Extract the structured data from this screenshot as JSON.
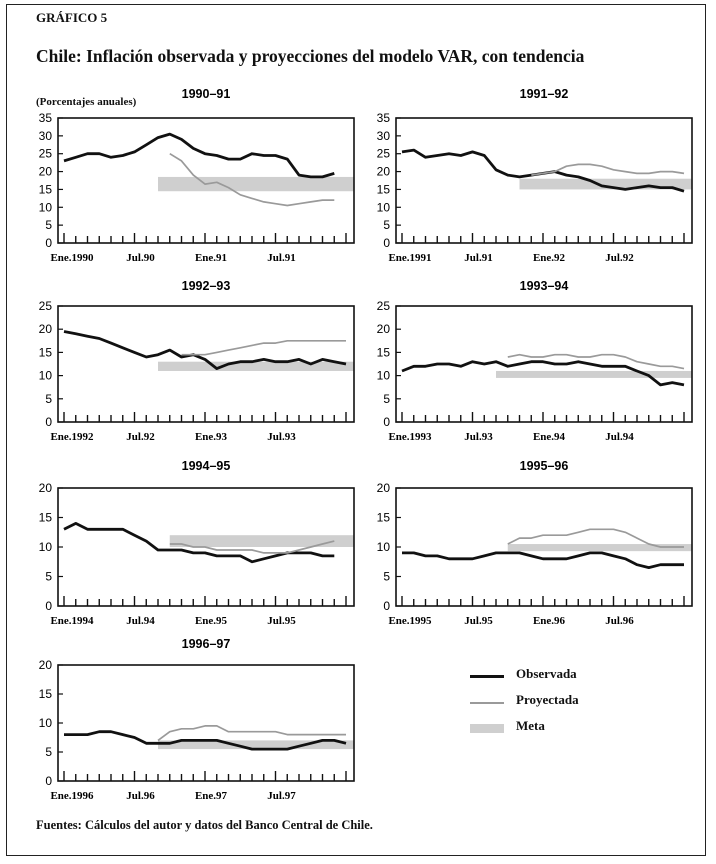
{
  "figure": {
    "label": "GRÁFICO 5",
    "title": "Chile: Inflación observada y proyecciones del modelo VAR, con tendencia",
    "ylabel": "(Porcentajes anuales)",
    "source": "Fuentes: Cálculos del autor y datos del Banco Central de Chile."
  },
  "legend": {
    "observada": "Observada",
    "proyectada": "Proyectada",
    "meta": "Meta"
  },
  "colors": {
    "observada": "#111111",
    "proyectada": "#9a9a9a",
    "meta": "#cfcfcf"
  },
  "chart_data": [
    {
      "type": "line",
      "title": "1990–91",
      "ylim": [
        0,
        35
      ],
      "yticks": [
        0,
        5,
        10,
        15,
        20,
        25,
        30,
        35
      ],
      "xlabels": [
        {
          "label": "Ene.1990",
          "month": 0
        },
        {
          "label": "Jul.90",
          "month": 6
        },
        {
          "label": "Ene.91",
          "month": 12
        },
        {
          "label": "Jul.91",
          "month": 18
        }
      ],
      "meta": [
        14.5,
        18.5
      ],
      "meta_start": 8,
      "series": [
        {
          "name": "Observada",
          "x": [
            0,
            1,
            2,
            3,
            4,
            5,
            6,
            7,
            8,
            9,
            10,
            11,
            12,
            13,
            14,
            15,
            16,
            17,
            18,
            19,
            20,
            21,
            22,
            23
          ],
          "values": [
            23,
            24,
            25,
            25,
            24,
            24.5,
            25.5,
            27.5,
            29.5,
            30.5,
            29,
            26.5,
            25,
            24.5,
            23.5,
            23.5,
            25,
            24.5,
            24.5,
            23.5,
            19,
            18.5,
            18.5,
            19.5
          ]
        },
        {
          "name": "Proyectada",
          "x": [
            9,
            10,
            11,
            12,
            13,
            14,
            15,
            16,
            17,
            18,
            19,
            20,
            21,
            22,
            23
          ],
          "values": [
            25,
            23,
            19,
            16.5,
            17,
            15.5,
            13.5,
            12.5,
            11.5,
            11,
            10.5,
            11,
            11.5,
            12,
            12
          ]
        }
      ]
    },
    {
      "type": "line",
      "title": "1991–92",
      "ylim": [
        0,
        35
      ],
      "yticks": [
        0,
        5,
        10,
        15,
        20,
        25,
        30,
        35
      ],
      "xlabels": [
        {
          "label": "Ene.1991",
          "month": 0
        },
        {
          "label": "Jul.91",
          "month": 6
        },
        {
          "label": "Ene.92",
          "month": 12
        },
        {
          "label": "Jul.92",
          "month": 18
        }
      ],
      "meta": [
        15,
        18
      ],
      "meta_start": 10,
      "series": [
        {
          "name": "Observada",
          "x": [
            0,
            1,
            2,
            3,
            4,
            5,
            6,
            7,
            8,
            9,
            10,
            11,
            12,
            13,
            14,
            15,
            16,
            17,
            18,
            19,
            20,
            21,
            22,
            23,
            24
          ],
          "values": [
            25.5,
            26,
            24,
            24.5,
            25,
            24.5,
            25.5,
            24.5,
            20.5,
            19,
            18.5,
            19,
            19.5,
            20,
            19,
            18.5,
            17.5,
            16,
            15.5,
            15,
            15.5,
            16,
            15.5,
            15.5,
            14.5
          ]
        },
        {
          "name": "Proyectada",
          "x": [
            11,
            12,
            13,
            14,
            15,
            16,
            17,
            18,
            19,
            20,
            21,
            22,
            23,
            24
          ],
          "values": [
            19,
            19.5,
            20,
            21.5,
            22,
            22,
            21.5,
            20.5,
            20,
            19.5,
            19.5,
            20,
            20,
            19.5
          ]
        }
      ]
    },
    {
      "type": "line",
      "title": "1992–93",
      "ylim": [
        0,
        25
      ],
      "yticks": [
        0,
        5,
        10,
        15,
        20,
        25
      ],
      "xlabels": [
        {
          "label": "Ene.1992",
          "month": 0
        },
        {
          "label": "Jul.92",
          "month": 6
        },
        {
          "label": "Ene.93",
          "month": 12
        },
        {
          "label": "Jul.93",
          "month": 18
        }
      ],
      "meta": [
        11,
        13
      ],
      "meta_start": 8,
      "series": [
        {
          "name": "Observada",
          "x": [
            0,
            1,
            2,
            3,
            4,
            5,
            6,
            7,
            8,
            9,
            10,
            11,
            12,
            13,
            14,
            15,
            16,
            17,
            18,
            19,
            20,
            21,
            22,
            23,
            24
          ],
          "values": [
            19.5,
            19,
            18.5,
            18,
            17,
            16,
            15,
            14,
            14.5,
            15.5,
            14,
            14.5,
            13.5,
            11.5,
            12.5,
            13,
            13,
            13.5,
            13,
            13,
            13.5,
            12.5,
            13.5,
            13,
            12.5
          ]
        },
        {
          "name": "Proyectada",
          "x": [
            10,
            11,
            12,
            13,
            14,
            15,
            16,
            17,
            18,
            19,
            20,
            21,
            22,
            23,
            24
          ],
          "values": [
            14.5,
            14.5,
            14.5,
            15,
            15.5,
            16,
            16.5,
            17,
            17,
            17.5,
            17.5,
            17.5,
            17.5,
            17.5,
            17.5
          ]
        }
      ]
    },
    {
      "type": "line",
      "title": "1993–94",
      "ylim": [
        0,
        25
      ],
      "yticks": [
        0,
        5,
        10,
        15,
        20,
        25
      ],
      "xlabels": [
        {
          "label": "Ene.1993",
          "month": 0
        },
        {
          "label": "Jul.93",
          "month": 6
        },
        {
          "label": "Ene.94",
          "month": 12
        },
        {
          "label": "Jul.94",
          "month": 18
        }
      ],
      "meta": [
        9.5,
        11
      ],
      "meta_start": 8,
      "series": [
        {
          "name": "Observada",
          "x": [
            0,
            1,
            2,
            3,
            4,
            5,
            6,
            7,
            8,
            9,
            10,
            11,
            12,
            13,
            14,
            15,
            16,
            17,
            18,
            19,
            20,
            21,
            22,
            23,
            24
          ],
          "values": [
            11,
            12,
            12,
            12.5,
            12.5,
            12,
            13,
            12.5,
            13,
            12,
            12.5,
            13,
            13,
            12.5,
            12.5,
            13,
            12.5,
            12,
            12,
            12,
            11,
            10,
            8,
            8.5,
            8
          ]
        },
        {
          "name": "Proyectada",
          "x": [
            9,
            10,
            11,
            12,
            13,
            14,
            15,
            16,
            17,
            18,
            19,
            20,
            21,
            22,
            23,
            24
          ],
          "values": [
            14,
            14.5,
            14,
            14,
            14.5,
            14.5,
            14,
            14,
            14.5,
            14.5,
            14,
            13,
            12.5,
            12,
            12,
            11.5
          ]
        }
      ]
    },
    {
      "type": "line",
      "title": "1994–95",
      "ylim": [
        0,
        20
      ],
      "yticks": [
        0,
        5,
        10,
        15,
        20
      ],
      "xlabels": [
        {
          "label": "Ene.1994",
          "month": 0
        },
        {
          "label": "Jul.94",
          "month": 6
        },
        {
          "label": "Ene.95",
          "month": 12
        },
        {
          "label": "Jul.95",
          "month": 18
        }
      ],
      "meta": [
        10,
        12
      ],
      "meta_start": 9,
      "series": [
        {
          "name": "Observada",
          "x": [
            0,
            1,
            2,
            3,
            4,
            5,
            6,
            7,
            8,
            9,
            10,
            11,
            12,
            13,
            14,
            15,
            16,
            17,
            18,
            19,
            20,
            21,
            22,
            23
          ],
          "values": [
            13,
            14,
            13,
            13,
            13,
            13,
            12,
            11,
            9.5,
            9.5,
            9.5,
            9,
            9,
            8.5,
            8.5,
            8.5,
            7.5,
            8,
            8.5,
            9,
            9,
            9,
            8.5,
            8.5
          ]
        },
        {
          "name": "Proyectada",
          "x": [
            9,
            10,
            11,
            12,
            13,
            14,
            15,
            16,
            17,
            18,
            19,
            20,
            21,
            22,
            23
          ],
          "values": [
            10.5,
            10.5,
            10,
            10,
            9.5,
            9.5,
            9.5,
            9.5,
            9,
            9,
            9,
            9.5,
            10,
            10.5,
            11
          ]
        }
      ]
    },
    {
      "type": "line",
      "title": "1995–96",
      "ylim": [
        0,
        20
      ],
      "yticks": [
        0,
        5,
        10,
        15,
        20
      ],
      "xlabels": [
        {
          "label": "Ene.1995",
          "month": 0
        },
        {
          "label": "Jul.95",
          "month": 6
        },
        {
          "label": "Ene.96",
          "month": 12
        },
        {
          "label": "Jul.96",
          "month": 18
        }
      ],
      "meta": [
        9.3,
        10.5
      ],
      "meta_start": 9,
      "series": [
        {
          "name": "Observada",
          "x": [
            0,
            1,
            2,
            3,
            4,
            5,
            6,
            7,
            8,
            9,
            10,
            11,
            12,
            13,
            14,
            15,
            16,
            17,
            18,
            19,
            20,
            21,
            22,
            23,
            24
          ],
          "values": [
            9,
            9,
            8.5,
            8.5,
            8,
            8,
            8,
            8.5,
            9,
            9,
            9,
            8.5,
            8,
            8,
            8,
            8.5,
            9,
            9,
            8.5,
            8,
            7,
            6.5,
            7,
            7,
            7
          ]
        },
        {
          "name": "Proyectada",
          "x": [
            9,
            10,
            11,
            12,
            13,
            14,
            15,
            16,
            17,
            18,
            19,
            20,
            21,
            22,
            23,
            24
          ],
          "values": [
            10.5,
            11.5,
            11.5,
            12,
            12,
            12,
            12.5,
            13,
            13,
            13,
            12.5,
            11.5,
            10.5,
            10,
            10,
            10
          ]
        }
      ]
    },
    {
      "type": "line",
      "title": "1996–97",
      "ylim": [
        0,
        20
      ],
      "yticks": [
        0,
        5,
        10,
        15,
        20
      ],
      "xlabels": [
        {
          "label": "Ene.1996",
          "month": 0
        },
        {
          "label": "Jul.96",
          "month": 6
        },
        {
          "label": "Ene.97",
          "month": 12
        },
        {
          "label": "Jul.97",
          "month": 18
        }
      ],
      "meta": [
        5.5,
        7
      ],
      "meta_start": 8,
      "series": [
        {
          "name": "Observada",
          "x": [
            0,
            1,
            2,
            3,
            4,
            5,
            6,
            7,
            8,
            9,
            10,
            11,
            12,
            13,
            14,
            15,
            16,
            17,
            18,
            19,
            20,
            21,
            22,
            23,
            24
          ],
          "values": [
            8,
            8,
            8,
            8.5,
            8.5,
            8,
            7.5,
            6.5,
            6.5,
            6.5,
            7,
            7,
            7,
            7,
            6.5,
            6,
            5.5,
            5.5,
            5.5,
            5.5,
            6,
            6.5,
            7,
            7,
            6.5
          ]
        },
        {
          "name": "Proyectada",
          "x": [
            8,
            9,
            10,
            11,
            12,
            13,
            14,
            15,
            16,
            17,
            18,
            19,
            20,
            21,
            22,
            23,
            24
          ],
          "values": [
            7,
            8.5,
            9,
            9,
            9.5,
            9.5,
            8.5,
            8.5,
            8.5,
            8.5,
            8.5,
            8,
            8,
            8,
            8,
            8,
            8
          ]
        }
      ]
    }
  ]
}
